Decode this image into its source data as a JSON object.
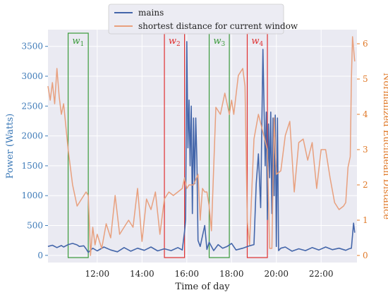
{
  "chart_data": {
    "type": "line",
    "xlabel": "Time of day",
    "ylabel": "Power (Watts)",
    "y2label": "Normalized Euclidean Distance",
    "xlim": [
      9.8,
      23.6
    ],
    "ylim": [
      -120,
      3780
    ],
    "y2lim": [
      -0.2,
      6.4
    ],
    "xticks": [
      12,
      14,
      16,
      18,
      20,
      22
    ],
    "xtick_labels": [
      "12:00",
      "14:00",
      "16:00",
      "18:00",
      "20:00",
      "22:00"
    ],
    "yticks": [
      0,
      500,
      1000,
      1500,
      2000,
      2500,
      3000,
      3500
    ],
    "yticks2": [
      0,
      1,
      2,
      3,
      4,
      5,
      6
    ],
    "grid": true,
    "legend_position": "top-center",
    "colors": {
      "mains": "#4466aa",
      "distance": "#e8a07e",
      "green": "#3a9a3a",
      "red": "#e03030",
      "bg": "#eaeaf2",
      "axis_left": "#3d7ab8",
      "axis_right": "#e07a2a"
    },
    "series": [
      {
        "name": "mains",
        "axis": "left",
        "x": [
          9.8,
          10.0,
          10.2,
          10.4,
          10.5,
          10.7,
          10.9,
          11.1,
          11.2,
          11.4,
          11.5,
          11.6,
          11.8,
          12.0,
          12.3,
          12.6,
          12.9,
          13.2,
          13.5,
          13.8,
          14.1,
          14.4,
          14.7,
          15.0,
          15.3,
          15.6,
          15.8,
          15.9,
          15.95,
          16.0,
          16.05,
          16.1,
          16.15,
          16.2,
          16.25,
          16.3,
          16.35,
          16.4,
          16.45,
          16.5,
          16.6,
          16.8,
          16.9,
          17.0,
          17.2,
          17.4,
          17.6,
          17.8,
          18.0,
          18.2,
          18.5,
          18.8,
          19.0,
          19.1,
          19.2,
          19.3,
          19.4,
          19.5,
          19.55,
          19.6,
          19.65,
          19.7,
          19.75,
          19.8,
          19.85,
          19.9,
          19.95,
          20.0,
          20.05,
          20.1,
          20.2,
          20.4,
          20.7,
          21.0,
          21.3,
          21.6,
          21.9,
          22.2,
          22.5,
          22.8,
          23.1,
          23.25,
          23.35,
          23.45,
          23.5
        ],
        "y": [
          150,
          170,
          130,
          165,
          140,
          180,
          200,
          175,
          150,
          160,
          110,
          50,
          120,
          75,
          140,
          90,
          60,
          130,
          70,
          120,
          85,
          140,
          75,
          110,
          80,
          130,
          90,
          400,
          600,
          3580,
          1800,
          2600,
          1500,
          2500,
          700,
          2300,
          1200,
          2300,
          1600,
          250,
          150,
          500,
          100,
          220,
          80,
          180,
          120,
          150,
          200,
          90,
          120,
          160,
          180,
          1200,
          1700,
          800,
          3450,
          1500,
          2400,
          600,
          2200,
          1300,
          2400,
          700,
          2300,
          1000,
          2350,
          150,
          2300,
          80,
          120,
          140,
          70,
          110,
          80,
          130,
          90,
          140,
          95,
          120,
          85,
          110,
          120,
          540,
          380
        ]
      },
      {
        "name": "shortest distance for current window",
        "axis": "right",
        "x": [
          9.8,
          9.9,
          10.0,
          10.1,
          10.2,
          10.3,
          10.4,
          10.5,
          10.7,
          10.9,
          11.1,
          11.3,
          11.5,
          11.6,
          11.65,
          11.7,
          11.8,
          11.9,
          12.0,
          12.2,
          12.4,
          12.6,
          12.8,
          13.0,
          13.2,
          13.4,
          13.6,
          13.8,
          14.0,
          14.2,
          14.4,
          14.6,
          14.8,
          15.0,
          15.2,
          15.4,
          15.6,
          15.8,
          15.9,
          16.0,
          16.1,
          16.3,
          16.5,
          16.6,
          16.7,
          16.8,
          16.9,
          17.0,
          17.1,
          17.3,
          17.5,
          17.7,
          17.9,
          18.0,
          18.1,
          18.3,
          18.5,
          18.6,
          18.7,
          18.8,
          19.0,
          19.2,
          19.4,
          19.6,
          19.7,
          19.8,
          19.9,
          20.0,
          20.2,
          20.4,
          20.6,
          20.8,
          21.0,
          21.2,
          21.4,
          21.6,
          21.8,
          22.0,
          22.2,
          22.4,
          22.6,
          22.8,
          23.0,
          23.1,
          23.2,
          23.3,
          23.35,
          23.4,
          23.5
        ],
        "y": [
          4.8,
          4.4,
          4.9,
          4.3,
          5.3,
          4.5,
          4.0,
          4.3,
          3.0,
          2.0,
          1.4,
          1.6,
          1.8,
          1.7,
          0.9,
          0.0,
          0.8,
          0.3,
          0.6,
          0.2,
          0.9,
          0.5,
          1.7,
          0.6,
          0.8,
          1.0,
          0.8,
          1.9,
          0.4,
          1.6,
          1.3,
          1.8,
          0.6,
          1.6,
          1.8,
          1.7,
          1.8,
          1.9,
          2.2,
          1.9,
          2.0,
          2.0,
          2.3,
          1.0,
          1.9,
          1.8,
          1.8,
          1.4,
          0.7,
          4.2,
          4.0,
          4.6,
          4.0,
          4.4,
          4.0,
          5.1,
          5.3,
          4.8,
          1.0,
          0.3,
          3.3,
          4.0,
          3.5,
          3.0,
          0.2,
          0.2,
          3.9,
          2.3,
          2.4,
          3.4,
          3.8,
          1.8,
          3.2,
          3.3,
          2.7,
          3.2,
          1.9,
          3.0,
          3.0,
          2.2,
          1.5,
          1.3,
          1.4,
          1.5,
          2.5,
          2.8,
          5.0,
          6.2,
          5.5
        ]
      }
    ],
    "windows": [
      {
        "label": "w",
        "sub": "1",
        "x0": 10.7,
        "x1": 11.6,
        "color": "green"
      },
      {
        "label": "w",
        "sub": "2",
        "x0": 15.0,
        "x1": 15.9,
        "color": "red"
      },
      {
        "label": "w",
        "sub": "3",
        "x0": 17.0,
        "x1": 17.9,
        "color": "green"
      },
      {
        "label": "w",
        "sub": "4",
        "x0": 18.7,
        "x1": 19.6,
        "color": "red"
      }
    ]
  }
}
